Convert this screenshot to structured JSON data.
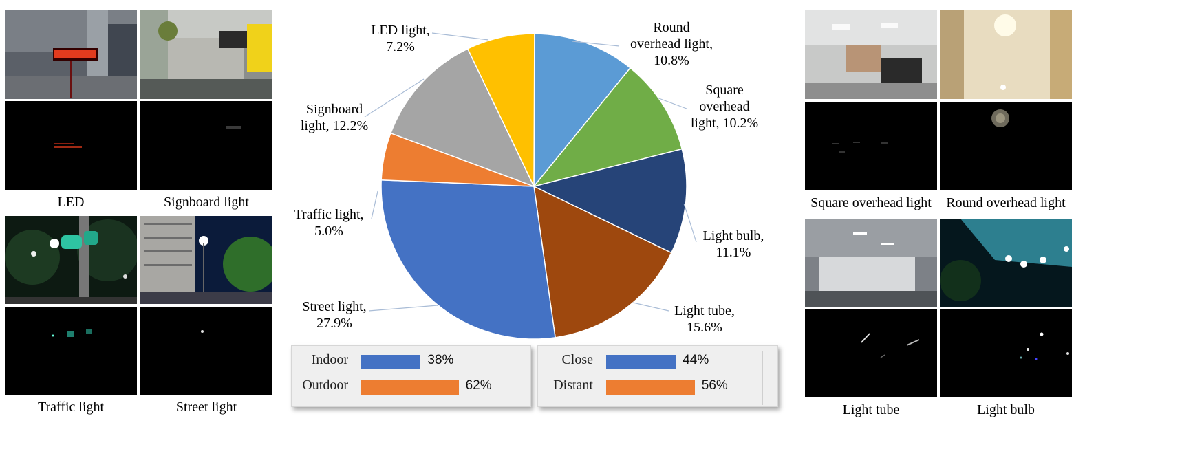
{
  "captions": {
    "led": "LED",
    "signboard": "Signboard light",
    "traffic": "Traffic light",
    "street": "Street light",
    "square_overhead": "Square overhead light",
    "round_overhead": "Round overhead light",
    "light_tube": "Light tube",
    "light_bulb": "Light bulb"
  },
  "chart_data": [
    {
      "type": "pie",
      "slices": [
        {
          "label_line1": "Round",
          "label_line2": "overhead light,",
          "label_line3": "10.8%",
          "name": "Round overhead light",
          "value": 10.8,
          "color": "#5b9bd5"
        },
        {
          "label_line1": "Square",
          "label_line2": "overhead",
          "label_line3": "light, 10.2%",
          "name": "Square overhead light",
          "value": 10.2,
          "color": "#70ad47"
        },
        {
          "label_line1": "Light bulb,",
          "label_line2": "11.1%",
          "label_line3": "",
          "name": "Light bulb",
          "value": 11.1,
          "color": "#264478"
        },
        {
          "label_line1": "Light tube,",
          "label_line2": "15.6%",
          "label_line3": "",
          "name": "Light tube",
          "value": 15.6,
          "color": "#9e480e"
        },
        {
          "label_line1": "Street light,",
          "label_line2": "27.9%",
          "label_line3": "",
          "name": "Street light",
          "value": 27.9,
          "color": "#4472c4"
        },
        {
          "label_line1": "Traffic light,",
          "label_line2": "5.0%",
          "label_line3": "",
          "name": "Traffic light",
          "value": 5.0,
          "color": "#ed7d31"
        },
        {
          "label_line1": "Signboard",
          "label_line2": "light, 12.2%",
          "label_line3": "",
          "name": "Signboard light",
          "value": 12.2,
          "color": "#a5a5a5"
        },
        {
          "label_line1": "LED light,",
          "label_line2": "7.2%",
          "label_line3": "",
          "name": "LED light",
          "value": 7.2,
          "color": "#ffc000"
        }
      ]
    },
    {
      "type": "bar",
      "orientation": "horizontal",
      "categories": [
        "Indoor",
        "Outdoor"
      ],
      "values": [
        38,
        62
      ],
      "value_labels": [
        "38%",
        "62%"
      ],
      "colors": [
        "#4472c4",
        "#ed7d31"
      ],
      "xlim": [
        0,
        100
      ]
    },
    {
      "type": "bar",
      "orientation": "horizontal",
      "categories": [
        "Close",
        "Distant"
      ],
      "values": [
        44,
        56
      ],
      "value_labels": [
        "44%",
        "56%"
      ],
      "colors": [
        "#4472c4",
        "#ed7d31"
      ],
      "xlim": [
        0,
        100
      ]
    }
  ]
}
